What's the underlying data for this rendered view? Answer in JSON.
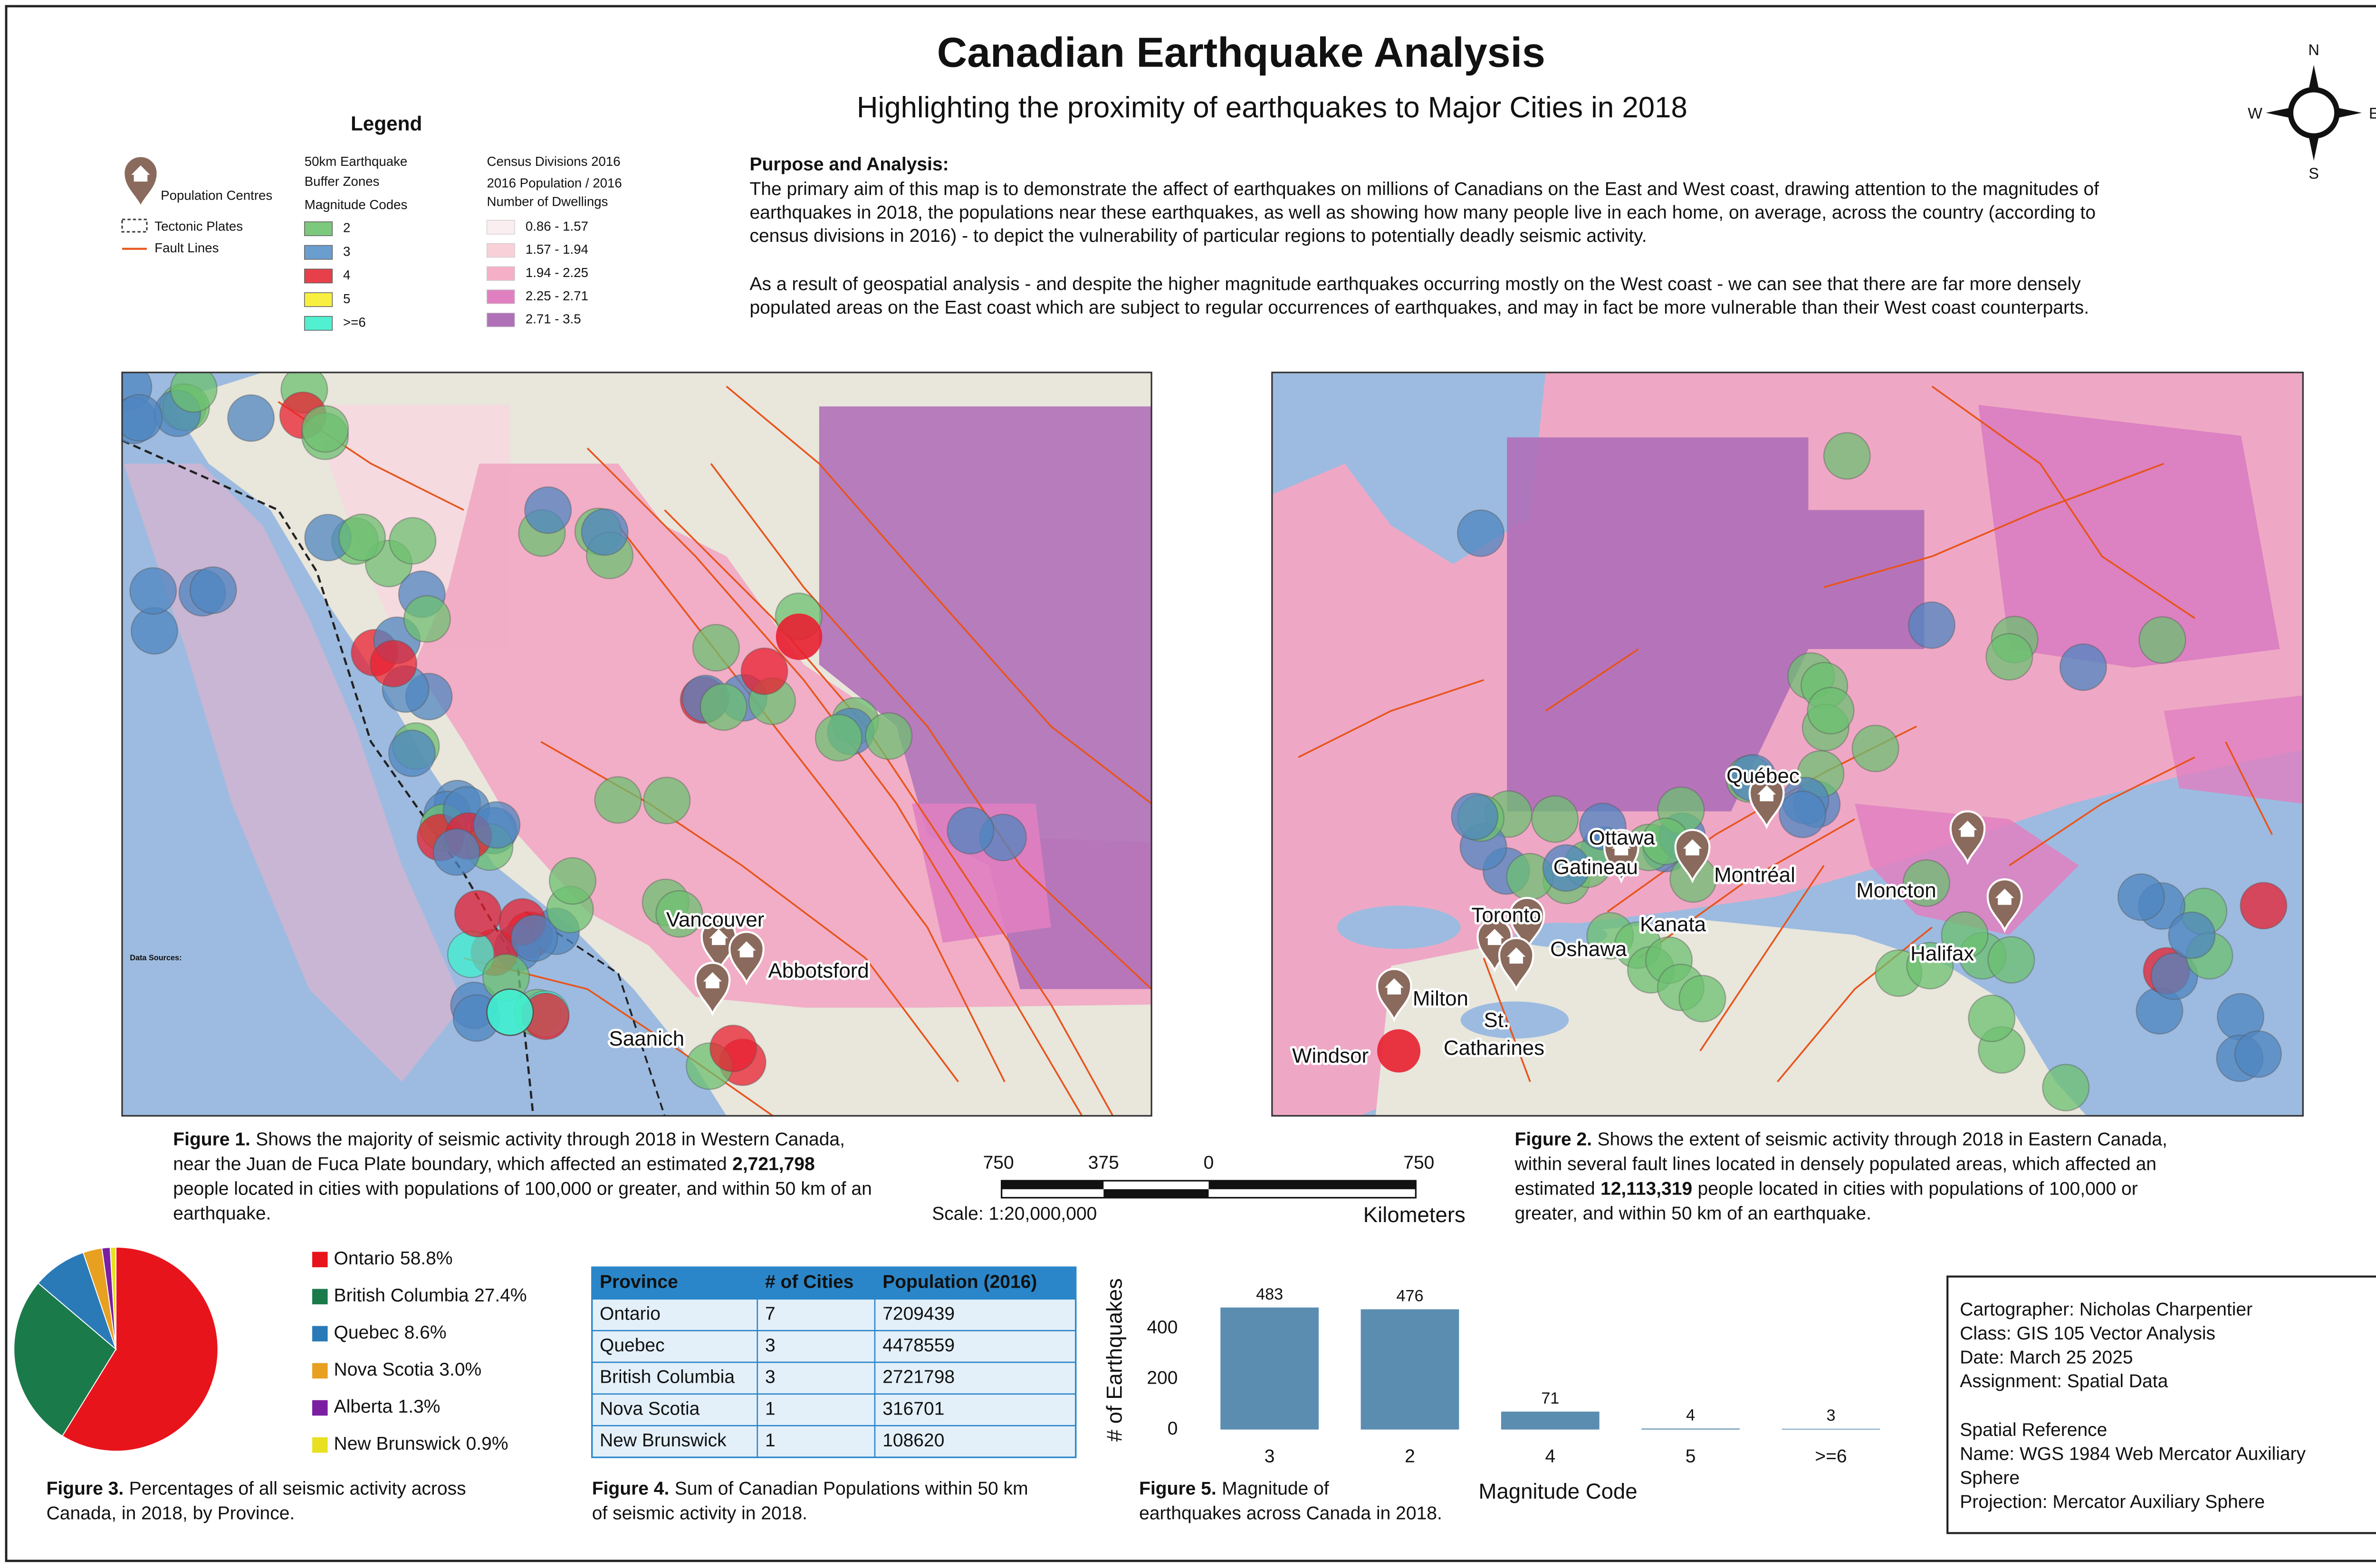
{
  "header": {
    "title": "Canadian Earthquake Analysis",
    "subtitle": "Highlighting the proximity of earthquakes to Major Cities in 2018"
  },
  "compass": {
    "north": "N",
    "east": "E",
    "south": "S",
    "west": "W"
  },
  "legend": {
    "title": "Legend",
    "symbols": [
      "Population Centres",
      "Tectonic Plates",
      "Fault Lines"
    ],
    "buffer_title": [
      "50km Earthquake",
      "Buffer Zones"
    ],
    "magnitude_title": "Magnitude Codes",
    "magnitudes": [
      {
        "label": "2",
        "color": "#7cc87c"
      },
      {
        "label": "3",
        "color": "#6a9ecf"
      },
      {
        "label": "4",
        "color": "#e8404a"
      },
      {
        "label": "5",
        "color": "#f8f040"
      },
      {
        "label": ">=6",
        "color": "#50f0d0"
      }
    ],
    "census_title": "Census Divisions 2016",
    "census_subtitle": [
      "2016 Population / 2016",
      "Number of Dwellings"
    ],
    "census": [
      {
        "label": "0.86 - 1.57",
        "color": "#fbeef0"
      },
      {
        "label": "1.57 - 1.94",
        "color": "#f8d0d8"
      },
      {
        "label": "1.94 - 2.25",
        "color": "#f5b0c8"
      },
      {
        "label": "2.25 - 2.71",
        "color": "#e080c0"
      },
      {
        "label": "2.71 - 3.5",
        "color": "#b070b8"
      }
    ]
  },
  "purpose": {
    "heading": "Purpose and Analysis:",
    "paragraphs": [
      [
        "The primary aim of this map is to demonstrate the affect of earthquakes on millions of Canadians on the East and West coast, drawing attention to the magnitudes of",
        "earthquakes in 2018, the populations near these earthquakes, as well as showing how many people live in each home, on average, across the country (according to",
        "census divisions in 2016) - to depict the vulnerability of particular regions to potentially deadly seismic activity."
      ],
      [
        "As a result of geospatial analysis - and despite the higher magnitude earthquakes occurring mostly on the West coast - we can see that there are far more densely",
        "populated areas on the East coast which are subject to regular occurrences of earthquakes, and may in fact be more vulnerable than their West coast counterparts."
      ]
    ]
  },
  "map_west": {
    "data_sources": "Data Sources:",
    "cities": [
      [
        "Vancouver"
      ],
      [
        "Abbotsford"
      ],
      [
        "Saanich"
      ]
    ]
  },
  "map_east": {
    "cities": [
      [
        "Québec"
      ],
      [
        "Ottawa"
      ],
      [
        "Gatineau"
      ],
      [
        "Montréal"
      ],
      [
        "Kanata"
      ],
      [
        "Toronto"
      ],
      [
        "Oshawa"
      ],
      [
        "Milton"
      ],
      [
        "St.",
        "Catharines"
      ],
      [
        "Windsor"
      ],
      [
        "Moncton"
      ],
      [
        "Halifax"
      ]
    ]
  },
  "scale_bar": {
    "labels": [
      "750",
      "375",
      "0",
      "750"
    ],
    "scale": "Scale: 1:20,000,000",
    "units": "Kilometers"
  },
  "captions": {
    "figure1": [
      [
        {
          "text": "Figure 1.",
          "bold": true
        },
        "Shows the majority of seismic activity through 2018 in Western Canada,"
      ],
      [
        "near the Juan de Fuca Plate boundary, which affected an estimated",
        {
          "text": "2,721,798",
          "bold": true
        }
      ],
      [
        "people located in cities with populations of 100,000 or greater, and within 50 km of an"
      ],
      [
        "earthquake."
      ]
    ],
    "figure2": [
      [
        {
          "text": "Figure 2.",
          "bold": true
        },
        "Shows the extent of seismic activity through 2018 in Eastern Canada,"
      ],
      [
        "within several fault lines located in densely populated areas, which affected an"
      ],
      [
        "estimated",
        {
          "text": "12,113,319",
          "bold": true
        },
        "people located in cities with populations of 100,000 or"
      ],
      [
        "greater, and within 50 km of an earthquake."
      ]
    ],
    "figure3": [
      [
        {
          "text": "Figure 3.",
          "bold": true
        },
        "Percentages of all seismic activity across"
      ],
      [
        "Canada, in 2018, by Province."
      ]
    ],
    "figure4": [
      [
        {
          "text": "Figure 4.",
          "bold": true
        },
        "Sum of Canadian Populations within 50 km"
      ],
      [
        "of seismic activity in 2018."
      ]
    ],
    "figure5": [
      [
        {
          "text": "Figure 5.",
          "bold": true
        },
        "Magnitude of"
      ],
      [
        "earthquakes across Canada in 2018."
      ]
    ]
  },
  "table": {
    "columns": [
      "Province",
      "# of Cities",
      "Population (2016)"
    ],
    "rows": [
      [
        "Ontario",
        7,
        7209439
      ],
      [
        "Quebec",
        3,
        4478559
      ],
      [
        "British Columbia",
        3,
        2721798
      ],
      [
        "Nova Scotia",
        1,
        316701
      ],
      [
        "New Brunswick",
        1,
        108620
      ]
    ]
  },
  "info": {
    "cartographer": [
      "Cartographer: Nicholas Charpentier",
      "Class: GIS 105 Vector Analysis",
      "Date: March 25 2025",
      "Assignment: Spatial Data"
    ],
    "spatial_reference": [
      "Spatial Reference",
      "Name: WGS 1984 Web Mercator Auxiliary",
      "Sphere",
      "Projection: Mercator Auxiliary Sphere"
    ]
  },
  "chart_data": [
    {
      "type": "pie",
      "categories": [
        "Ontario",
        "British Columbia",
        "Quebec",
        "Nova Scotia",
        "Alberta",
        "New Brunswick"
      ],
      "values": [
        58.8,
        27.4,
        8.6,
        3.0,
        1.3,
        0.9
      ],
      "value_labels": [
        "58.8%",
        "27.4%",
        "8.6%",
        "3.0%",
        "1.3%",
        "0.9%"
      ],
      "colors": [
        "#e8141c",
        "#1a7a4a",
        "#2a7ab8",
        "#e8a020",
        "#7b1fa2",
        "#e8e020"
      ]
    },
    {
      "type": "bar",
      "categories": [
        "3",
        "2",
        "4",
        "5",
        ">=6"
      ],
      "values": [
        483,
        476,
        71,
        4,
        3
      ],
      "color": "#5b8db0",
      "y_label": "# of Earthquakes",
      "x_label": "Magnitude Code",
      "ylim": [
        0,
        520
      ],
      "yticks": [
        0,
        200,
        400
      ],
      "grid": false
    }
  ]
}
